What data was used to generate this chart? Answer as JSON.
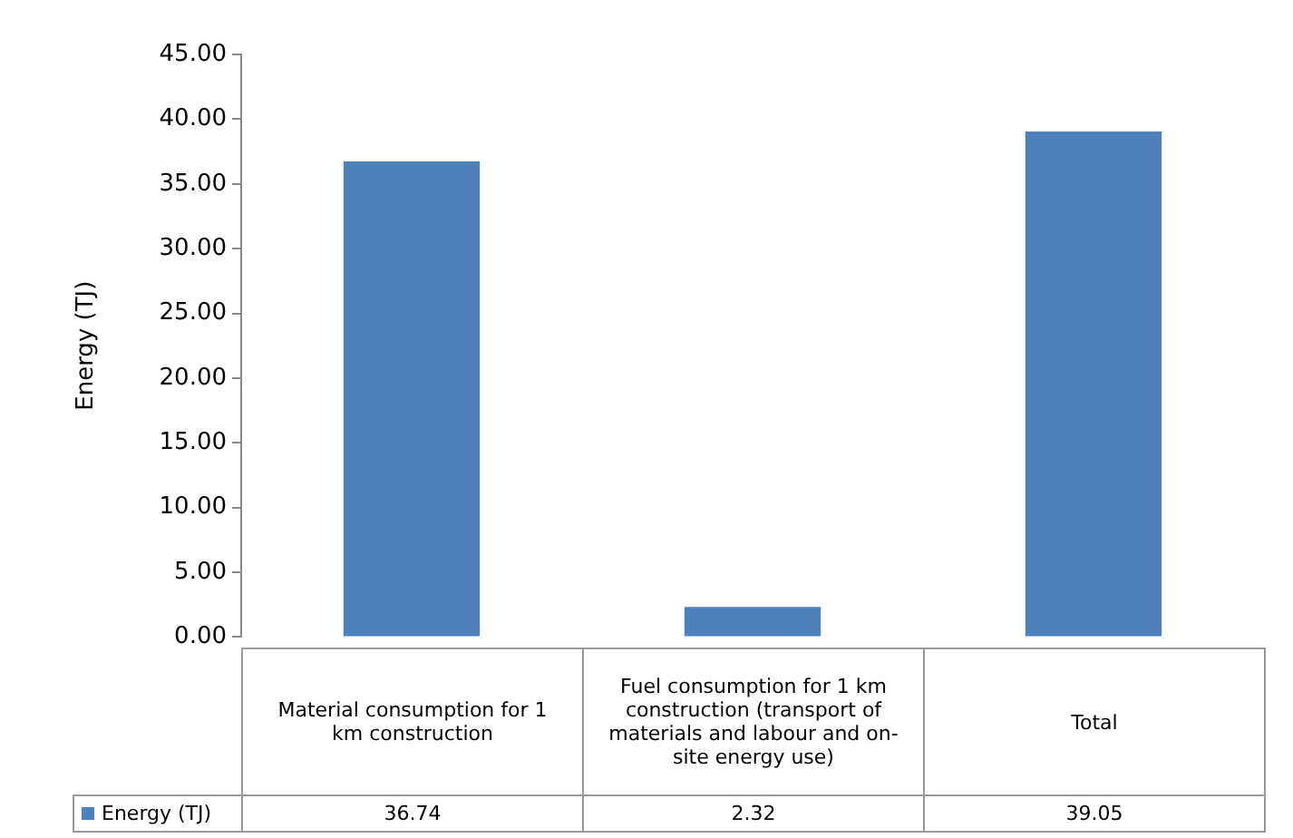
{
  "chart_data": {
    "type": "bar",
    "ylabel": "Energy (TJ)",
    "categories": [
      "Material consumption for 1 km construction",
      "Fuel consumption for 1 km construction (transport of materials and labour and on-site energy use)",
      "Total"
    ],
    "series": [
      {
        "name": "Energy (TJ)",
        "color": "#4f81bd",
        "values": [
          36.74,
          2.32,
          39.05
        ]
      }
    ],
    "ylim": [
      0,
      45
    ],
    "yticks": [
      {
        "value": 0,
        "label": "0.00"
      },
      {
        "value": 5,
        "label": "5.00"
      },
      {
        "value": 10,
        "label": "10.00"
      },
      {
        "value": 15,
        "label": "15.00"
      },
      {
        "value": 20,
        "label": "20.00"
      },
      {
        "value": 25,
        "label": "25.00"
      },
      {
        "value": 30,
        "label": "30.00"
      },
      {
        "value": 35,
        "label": "35.00"
      },
      {
        "value": 40,
        "label": "40.00"
      },
      {
        "value": 45,
        "label": "45.00"
      }
    ],
    "grid": false,
    "legend": "bottom",
    "data_labels": true
  }
}
